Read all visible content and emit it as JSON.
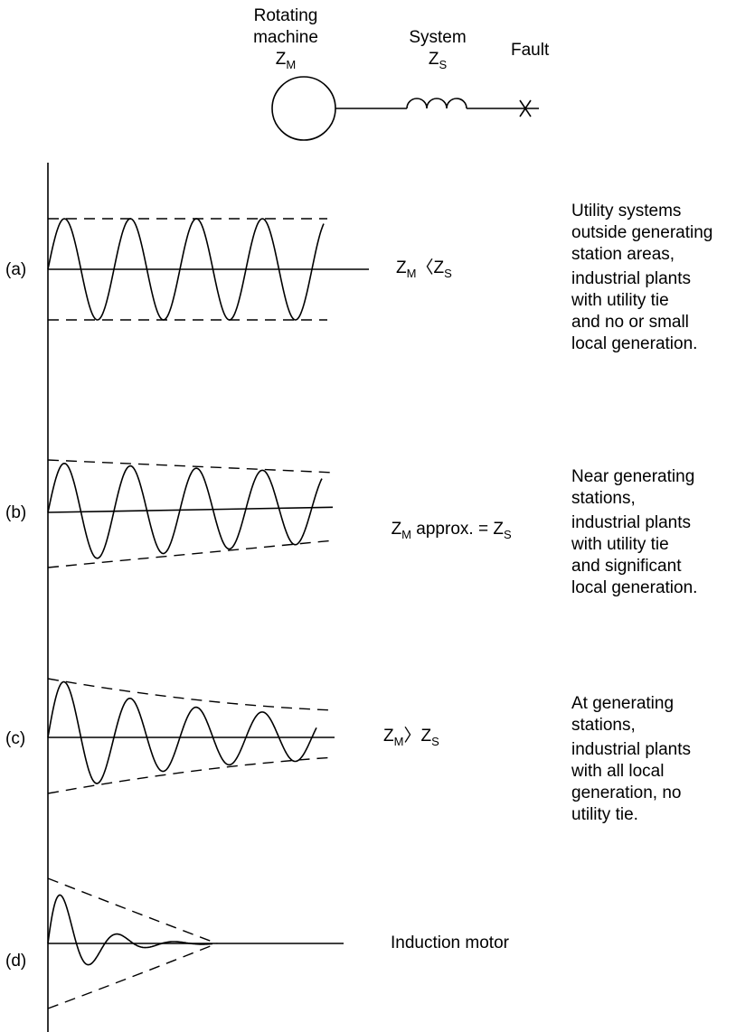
{
  "header": {
    "machine": {
      "line1": "Rotating",
      "line2": "machine",
      "symbol": "Z",
      "subscript": "M"
    },
    "system": {
      "line1": "System",
      "symbol": "Z",
      "subscript": "S"
    },
    "fault": "Fault"
  },
  "cases": [
    {
      "label": "(a)",
      "relation": {
        "lhs": "Z",
        "lhs_sub": "M",
        "op": "〈",
        "rhs": "Z",
        "rhs_sub": "S"
      },
      "description": [
        [
          "Utility systems",
          "outside generating",
          "station areas,"
        ],
        [
          "industrial plants",
          "with utility tie",
          "and no or small",
          "local generation."
        ]
      ]
    },
    {
      "label": "(b)",
      "relation": {
        "lhs": "Z",
        "lhs_sub": "M",
        "op": " approx. = ",
        "rhs": "Z",
        "rhs_sub": "S"
      },
      "description": [
        [
          "Near generating",
          "stations,"
        ],
        [
          "industrial plants",
          "with utility tie",
          "and significant",
          "local generation."
        ]
      ]
    },
    {
      "label": "(c)",
      "relation": {
        "lhs": "Z",
        "lhs_sub": "M",
        "op": "〉",
        "rhs": "Z",
        "rhs_sub": "S"
      },
      "description": [
        [
          "At generating",
          "stations,"
        ],
        [
          "industrial plants",
          "with all local",
          "generation, no",
          "utility tie."
        ]
      ]
    },
    {
      "label": "(d)",
      "relation_text": "Induction motor"
    }
  ]
}
